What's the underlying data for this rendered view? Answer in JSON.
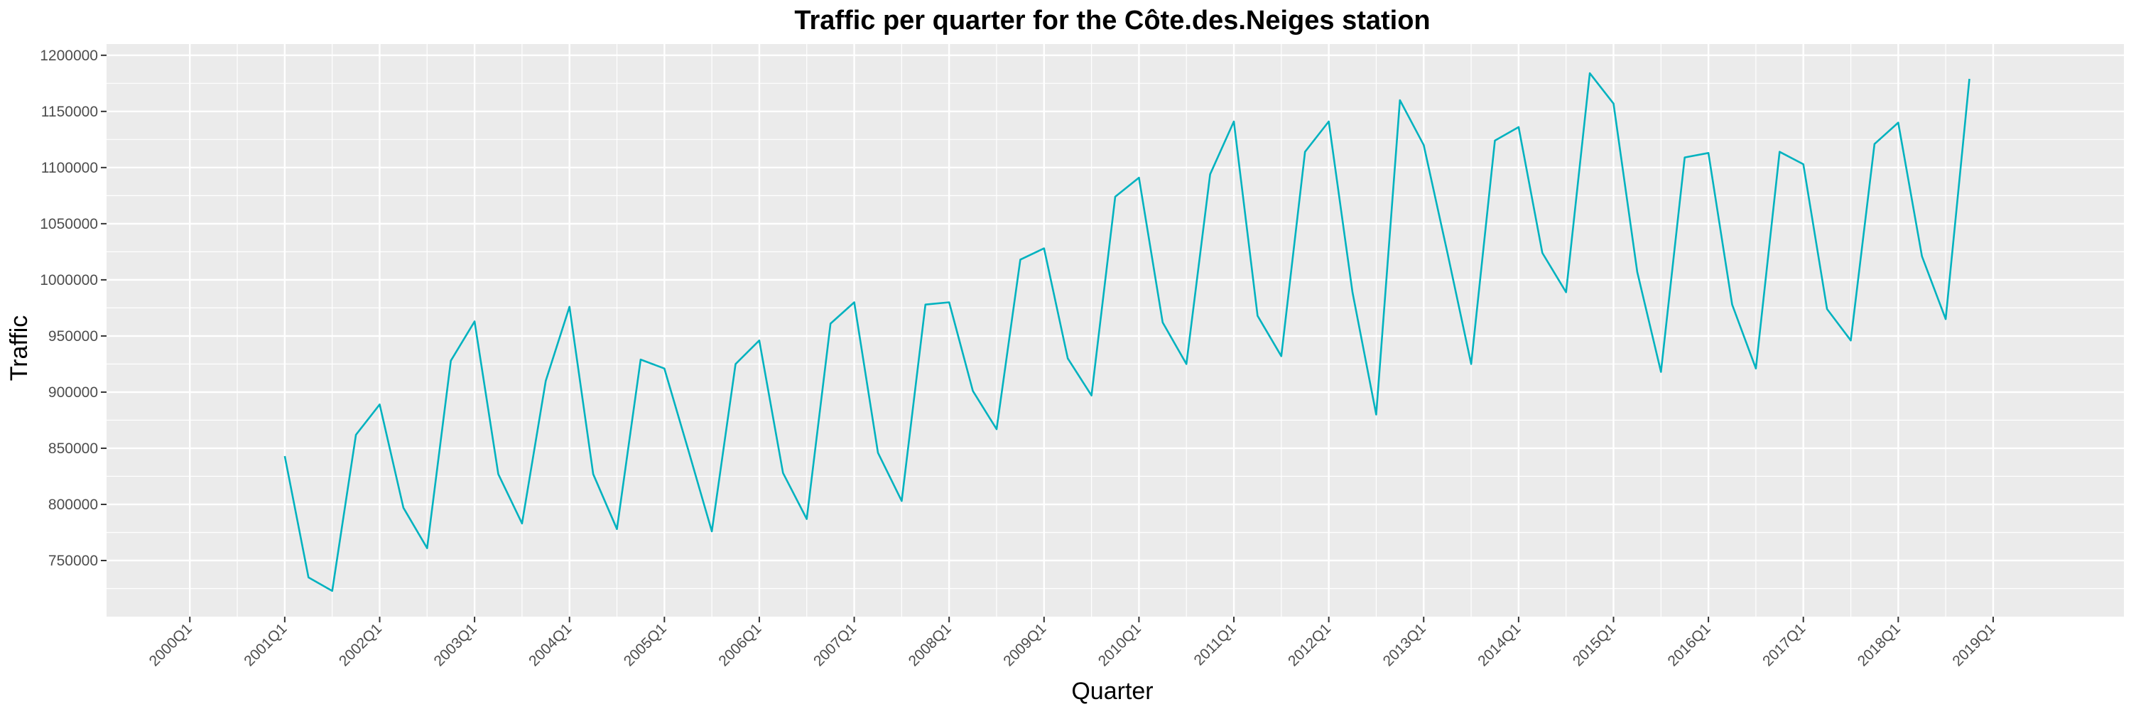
{
  "chart_data": {
    "type": "line",
    "title": "Traffic per quarter for the Côte.des.Neiges station",
    "xlabel": "Quarter",
    "ylabel": "Traffic",
    "x_ticks": [
      "2000Q1",
      "2001Q1",
      "2002Q1",
      "2003Q1",
      "2004Q1",
      "2005Q1",
      "2006Q1",
      "2007Q1",
      "2008Q1",
      "2009Q1",
      "2010Q1",
      "2011Q1",
      "2012Q1",
      "2013Q1",
      "2014Q1",
      "2015Q1",
      "2016Q1",
      "2017Q1",
      "2018Q1",
      "2019Q1"
    ],
    "y_ticks": [
      "750000",
      "800000",
      "850000",
      "900000",
      "950000",
      "1000000",
      "1050000",
      "1100000",
      "1150000",
      "1200000"
    ],
    "ylim": [
      700000,
      1210000
    ],
    "xlim": [
      "2000Q1",
      "2019Q3"
    ],
    "grid": true,
    "line_color": "#00B2BF",
    "panel_color": "#EBEBEB",
    "series": [
      {
        "x": [
          "2001Q1",
          "2001Q2",
          "2001Q3",
          "2001Q4",
          "2002Q1",
          "2002Q2",
          "2002Q3",
          "2002Q4",
          "2003Q1",
          "2003Q2",
          "2003Q3",
          "2003Q4",
          "2004Q1",
          "2004Q2",
          "2004Q3",
          "2004Q4",
          "2005Q1",
          "2005Q2",
          "2005Q3",
          "2005Q4",
          "2006Q1",
          "2006Q2",
          "2006Q3",
          "2006Q4",
          "2007Q1",
          "2007Q2",
          "2007Q3",
          "2007Q4",
          "2008Q1",
          "2008Q2",
          "2008Q3",
          "2008Q4",
          "2009Q1",
          "2009Q2",
          "2009Q3",
          "2009Q4",
          "2010Q1",
          "2010Q2",
          "2010Q3",
          "2010Q4",
          "2011Q1",
          "2011Q2",
          "2011Q3",
          "2011Q4",
          "2012Q1",
          "2012Q2",
          "2012Q3",
          "2012Q4",
          "2013Q1",
          "2013Q2",
          "2013Q3",
          "2013Q4",
          "2014Q1",
          "2014Q2",
          "2014Q3",
          "2014Q4",
          "2015Q1",
          "2015Q2",
          "2015Q3",
          "2015Q4",
          "2016Q1",
          "2016Q2",
          "2016Q3",
          "2016Q4",
          "2017Q1",
          "2017Q2",
          "2017Q3",
          "2017Q4",
          "2018Q1",
          "2018Q2",
          "2018Q3",
          "2018Q4"
        ],
        "values": [
          843000,
          735000,
          723000,
          862000,
          889000,
          797000,
          761000,
          928000,
          963000,
          827000,
          783000,
          910000,
          976000,
          827000,
          778000,
          929000,
          921000,
          849000,
          776000,
          925000,
          946000,
          828000,
          787000,
          961000,
          980000,
          846000,
          803000,
          978000,
          980000,
          901000,
          867000,
          1018000,
          1028000,
          930000,
          897000,
          1074000,
          1091000,
          962000,
          925000,
          1094000,
          1141000,
          968000,
          932000,
          1114000,
          1141000,
          989000,
          880000,
          1160000,
          1120000,
          1024000,
          925000,
          1124000,
          1136000,
          1024000,
          989000,
          1184000,
          1157000,
          1007000,
          918000,
          1109000,
          1113000,
          978000,
          921000,
          1114000,
          1103000,
          974000,
          946000,
          1121000,
          1140000,
          1021000,
          965000,
          1179000
        ]
      }
    ]
  }
}
